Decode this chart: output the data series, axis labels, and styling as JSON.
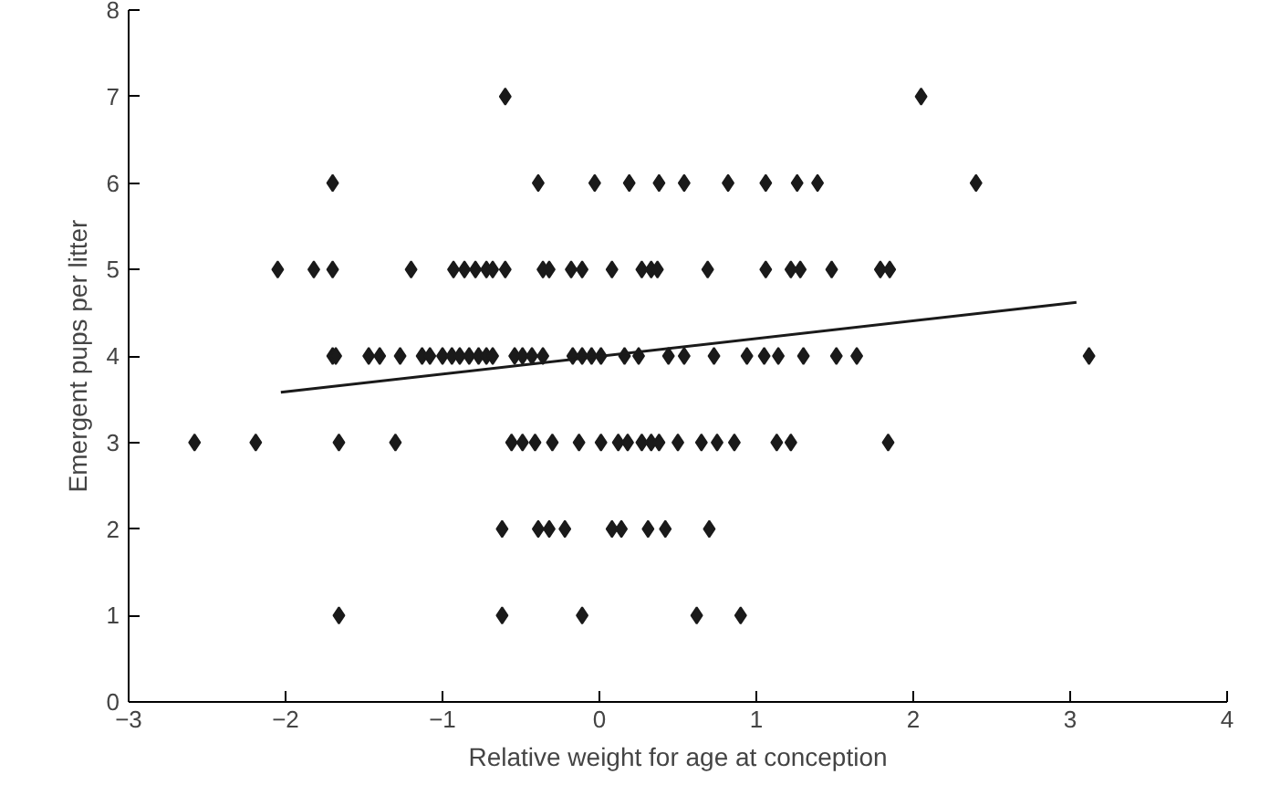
{
  "chart_data": {
    "type": "scatter",
    "xlabel": "Relative weight for age at conception",
    "ylabel": "Emergent pups per litter",
    "xlim": [
      -3,
      4
    ],
    "ylim": [
      0,
      8
    ],
    "xticks": [
      {
        "value": -3,
        "label": "−3"
      },
      {
        "value": -2,
        "label": "−2"
      },
      {
        "value": -1,
        "label": "−1"
      },
      0,
      1,
      2,
      3,
      4
    ],
    "yticks": [
      0,
      1,
      2,
      3,
      4,
      5,
      6,
      7,
      8
    ],
    "grid": false,
    "marker": "diamond",
    "series": [
      {
        "color": "#1a1a1a",
        "x": [
          -0.6,
          2.05,
          -1.7,
          -0.39,
          -0.03,
          0.19,
          0.38,
          0.54,
          0.82,
          1.06,
          1.26,
          1.39,
          2.4,
          -2.05,
          -1.82,
          -1.7,
          -1.2,
          -0.93,
          -0.86,
          -0.79,
          -0.72,
          -0.68,
          -0.6,
          -0.36,
          -0.32,
          -0.18,
          -0.11,
          0.08,
          0.27,
          0.33,
          0.37,
          0.69,
          1.06,
          1.22,
          1.28,
          1.48,
          1.79,
          1.85,
          -1.7,
          -1.68,
          -1.47,
          -1.4,
          -1.27,
          -1.13,
          -1.08,
          -1.0,
          -0.94,
          -0.89,
          -0.83,
          -0.77,
          -0.72,
          -0.68,
          -0.54,
          -0.49,
          -0.43,
          -0.36,
          -0.17,
          -0.11,
          -0.05,
          0.01,
          0.16,
          0.25,
          0.44,
          0.54,
          0.73,
          0.94,
          1.05,
          1.14,
          1.3,
          1.51,
          1.64,
          3.12,
          -2.58,
          -2.19,
          -1.66,
          -1.3,
          -0.56,
          -0.49,
          -0.41,
          -0.3,
          -0.13,
          0.01,
          0.12,
          0.18,
          0.27,
          0.33,
          0.38,
          0.5,
          0.65,
          0.75,
          0.86,
          1.13,
          1.22,
          1.84,
          -0.62,
          -0.39,
          -0.32,
          -0.22,
          0.08,
          0.14,
          0.31,
          0.42,
          0.7,
          -1.66,
          -0.62,
          -0.11,
          0.62,
          0.9
        ],
        "values": [
          7,
          7,
          6,
          6,
          6,
          6,
          6,
          6,
          6,
          6,
          6,
          6,
          6,
          5,
          5,
          5,
          5,
          5,
          5,
          5,
          5,
          5,
          5,
          5,
          5,
          5,
          5,
          5,
          5,
          5,
          5,
          5,
          5,
          5,
          5,
          5,
          5,
          5,
          4,
          4,
          4,
          4,
          4,
          4,
          4,
          4,
          4,
          4,
          4,
          4,
          4,
          4,
          4,
          4,
          4,
          4,
          4,
          4,
          4,
          4,
          4,
          4,
          4,
          4,
          4,
          4,
          4,
          4,
          4,
          4,
          4,
          4,
          3,
          3,
          3,
          3,
          3,
          3,
          3,
          3,
          3,
          3,
          3,
          3,
          3,
          3,
          3,
          3,
          3,
          3,
          3,
          3,
          3,
          3,
          2,
          2,
          2,
          2,
          2,
          2,
          2,
          2,
          2,
          1,
          1,
          1,
          1,
          1
        ]
      },
      {
        "type": "line",
        "color": "#1a1a1a",
        "x": [
          -2.03,
          3.04
        ],
        "values": [
          3.58,
          4.62
        ],
        "marker": "none"
      }
    ]
  }
}
